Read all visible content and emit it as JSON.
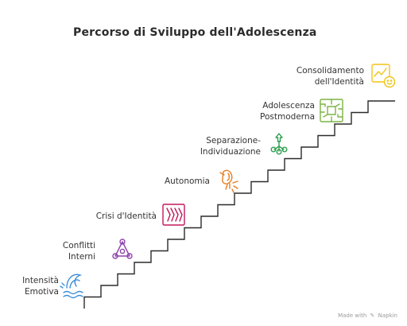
{
  "title": "Percorso di Sviluppo dell'Adolescenza",
  "steps": [
    {
      "line1": "Intensità",
      "line2": "Emotiva",
      "icon": "wave-icon",
      "color": "#3b8fd9"
    },
    {
      "line1": "Conflitti",
      "line2": "Interni",
      "icon": "triangle-network-icon",
      "color": "#8e44ad"
    },
    {
      "line1": "Crisi d'Identità",
      "line2": "",
      "icon": "chaos-lines-icon",
      "color": "#c2185b"
    },
    {
      "line1": "Autonomia",
      "line2": "",
      "icon": "bird-icon",
      "color": "#e67e22"
    },
    {
      "line1": "Separazione-",
      "line2": "Individuazione",
      "icon": "tree-branch-icon",
      "color": "#2e9e4f"
    },
    {
      "line1": "Adolescenza",
      "line2": "Postmoderna",
      "icon": "circuit-icon",
      "color": "#7cb342"
    },
    {
      "line1": "Consolidamento",
      "line2": "dell'Identità",
      "icon": "chart-smile-icon",
      "color": "#f0c419"
    }
  ],
  "credit": {
    "prefix": "Made with",
    "brand": "Napkin"
  }
}
